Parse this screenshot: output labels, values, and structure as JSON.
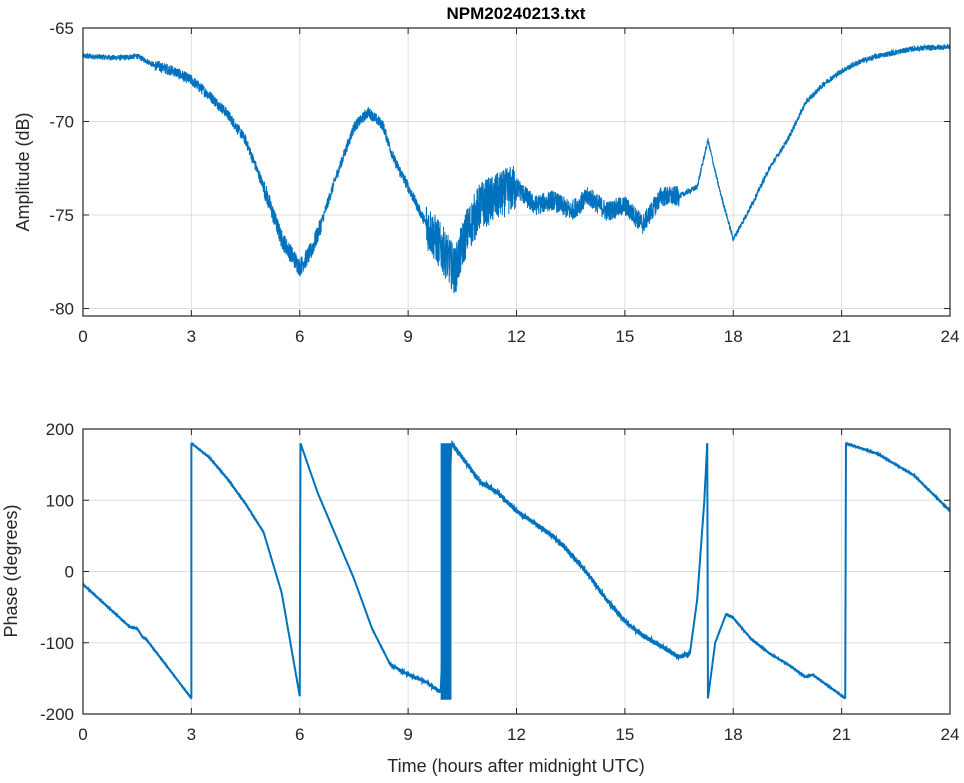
{
  "chart_data": [
    {
      "type": "line",
      "title": "NPM20240213.txt",
      "xlabel": "",
      "ylabel": "Amplitude (dB)",
      "xlim": [
        0,
        24
      ],
      "ylim": [
        -80.4,
        -65
      ],
      "xticks": [
        0,
        3,
        6,
        9,
        12,
        15,
        18,
        21,
        24
      ],
      "yticks": [
        -65,
        -70,
        -75,
        -80
      ],
      "grid": true,
      "color": "#0072BD",
      "series": [
        {
          "name": "amplitude",
          "points": [
            [
              0,
              -66.5
            ],
            [
              1,
              -66.6
            ],
            [
              1.5,
              -66.5
            ],
            [
              2,
              -67
            ],
            [
              2.5,
              -67.3
            ],
            [
              3,
              -67.8
            ],
            [
              3.5,
              -68.6
            ],
            [
              4,
              -69.6
            ],
            [
              4.5,
              -71
            ],
            [
              5,
              -73.5
            ],
            [
              5.5,
              -76.3
            ],
            [
              6,
              -77.8
            ],
            [
              6.3,
              -77
            ],
            [
              6.5,
              -76
            ],
            [
              7,
              -73
            ],
            [
              7.5,
              -70.3
            ],
            [
              7.9,
              -69.5
            ],
            [
              8.3,
              -70.2
            ],
            [
              8.6,
              -72
            ],
            [
              9,
              -73.5
            ],
            [
              9.5,
              -75.5
            ],
            [
              10,
              -77
            ],
            [
              10.3,
              -78
            ],
            [
              10.6,
              -76
            ],
            [
              11,
              -74.5
            ],
            [
              11.5,
              -74
            ],
            [
              12,
              -73.5
            ],
            [
              12.5,
              -74.5
            ],
            [
              13,
              -74.2
            ],
            [
              13.5,
              -74.8
            ],
            [
              14,
              -74
            ],
            [
              14.5,
              -74.8
            ],
            [
              15,
              -74.5
            ],
            [
              15.5,
              -75.5
            ],
            [
              16,
              -74
            ],
            [
              16.5,
              -74
            ],
            [
              17,
              -73.5
            ],
            [
              17.3,
              -71
            ],
            [
              17.6,
              -73.5
            ],
            [
              18,
              -76.3
            ],
            [
              18.5,
              -74.5
            ],
            [
              19,
              -72.5
            ],
            [
              19.5,
              -71
            ],
            [
              20,
              -69
            ],
            [
              20.5,
              -68
            ],
            [
              21,
              -67.3
            ],
            [
              21.5,
              -66.8
            ],
            [
              22,
              -66.5
            ],
            [
              23,
              -66.1
            ],
            [
              24,
              -66
            ]
          ]
        }
      ]
    },
    {
      "type": "line",
      "title": "",
      "xlabel": "Time (hours after midnight UTC)",
      "ylabel": "Phase (degrees)",
      "xlim": [
        0,
        24
      ],
      "ylim": [
        -200,
        200
      ],
      "xticks": [
        0,
        3,
        6,
        9,
        12,
        15,
        18,
        21,
        24
      ],
      "yticks": [
        200,
        100,
        0,
        -100,
        -200
      ],
      "grid": true,
      "color": "#0072BD",
      "series": [
        {
          "name": "phase",
          "segments": [
            [
              [
                0,
                -18
              ],
              [
                1.3,
                -78
              ],
              [
                1.5,
                -80
              ],
              [
                1.65,
                -92
              ],
              [
                1.75,
                -95
              ],
              [
                3.0,
                -178
              ]
            ],
            [
              [
                3.0,
                180
              ],
              [
                3.5,
                160
              ],
              [
                4,
                130
              ],
              [
                4.5,
                95
              ],
              [
                5,
                55
              ],
              [
                5.5,
                -30
              ],
              [
                6,
                -175
              ]
            ],
            [
              [
                6.02,
                180
              ],
              [
                6.5,
                110
              ],
              [
                7,
                50
              ],
              [
                7.5,
                -10
              ],
              [
                8,
                -80
              ],
              [
                8.5,
                -130
              ],
              [
                9,
                -145
              ],
              [
                9.5,
                -155
              ],
              [
                9.9,
                -170
              ]
            ],
            [
              [
                10.2,
                180
              ],
              [
                10.5,
                160
              ],
              [
                11,
                125
              ],
              [
                11.5,
                110
              ],
              [
                12,
                85
              ],
              [
                13,
                50
              ],
              [
                13.5,
                25
              ],
              [
                14,
                -5
              ],
              [
                14.5,
                -40
              ],
              [
                15,
                -70
              ],
              [
                15.5,
                -90
              ],
              [
                16,
                -105
              ],
              [
                16.5,
                -120
              ],
              [
                16.8,
                -115
              ],
              [
                17,
                -40
              ],
              [
                17.2,
                100
              ],
              [
                17.28,
                180
              ]
            ],
            [
              [
                17.3,
                -178
              ],
              [
                17.5,
                -100
              ],
              [
                17.8,
                -60
              ],
              [
                18,
                -65
              ],
              [
                18.5,
                -95
              ],
              [
                19,
                -115
              ],
              [
                19.5,
                -130
              ],
              [
                20,
                -148
              ],
              [
                20.2,
                -145
              ],
              [
                21.1,
                -178
              ]
            ],
            [
              [
                21.12,
                180
              ],
              [
                22,
                165
              ],
              [
                23,
                135
              ],
              [
                24,
                85
              ]
            ]
          ],
          "wrap_oscillation_hours": [
            9.9,
            10.2
          ]
        }
      ]
    }
  ]
}
